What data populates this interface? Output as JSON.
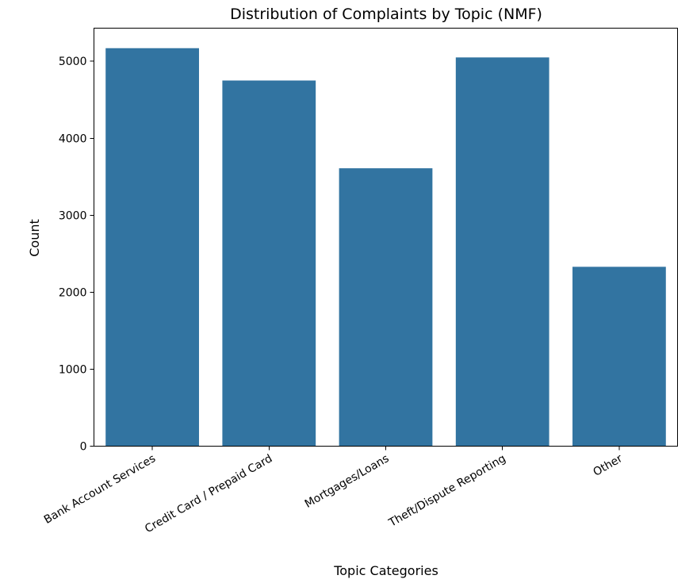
{
  "chart_data": {
    "type": "bar",
    "title": "Distribution of Complaints by Topic (NMF)",
    "xlabel": "Topic Categories",
    "ylabel": "Count",
    "categories": [
      "Bank Account Services",
      "Credit Card / Prepaid Card",
      "Mortgages/Loans",
      "Theft/Dispute Reporting",
      "Other"
    ],
    "values": [
      5170,
      4750,
      3610,
      5050,
      2330
    ],
    "ylim": [
      0,
      5430
    ],
    "yticks": [
      0,
      1000,
      2000,
      3000,
      4000,
      5000
    ],
    "grid": false,
    "bar_color": "#3274a1"
  }
}
